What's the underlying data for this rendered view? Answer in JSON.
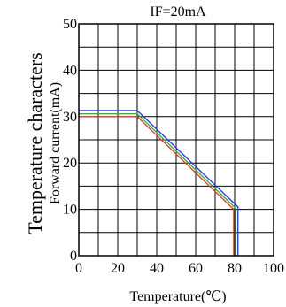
{
  "chart_data": {
    "type": "line",
    "title": "IF=20mA",
    "xlabel": "Temperature(℃)",
    "ylabel_lines": [
      "Temperature characters",
      "Forward current(mA)"
    ],
    "xlim": [
      0,
      100
    ],
    "ylim": [
      0,
      50
    ],
    "xticks": [
      0,
      20,
      40,
      60,
      80,
      100
    ],
    "yticks": [
      0,
      10,
      20,
      30,
      40,
      50
    ],
    "grid": true,
    "series": [
      {
        "color": "#e8392b",
        "points": [
          [
            0,
            30
          ],
          [
            30,
            30
          ],
          [
            79.5,
            10
          ],
          [
            79.5,
            0
          ]
        ]
      },
      {
        "color": "#2fb43a",
        "points": [
          [
            0,
            30.6
          ],
          [
            30,
            30.6
          ],
          [
            80.6,
            10.2
          ],
          [
            80.6,
            0
          ]
        ]
      },
      {
        "color": "#2b3ce0",
        "points": [
          [
            0,
            31.3
          ],
          [
            30,
            31.3
          ],
          [
            81.7,
            10.5
          ],
          [
            81.7,
            0
          ]
        ]
      }
    ]
  }
}
